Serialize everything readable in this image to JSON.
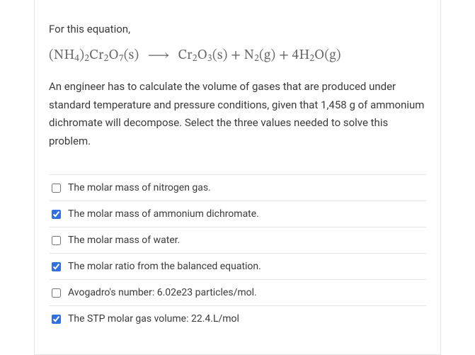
{
  "card": {
    "intro": "For this equation,",
    "equation_parts": {
      "lhs1": "(NH",
      "lhs1_sub": "4",
      "lhs2": ")",
      "lhs2_sub": "2",
      "lhs3": "Cr",
      "lhs3_sub": "2",
      "lhs4": "O",
      "lhs4_sub": "7",
      "lhs5": "(s)",
      "arrow": "⟶",
      "r1": "Cr",
      "r1_sub": "2",
      "r2": "O",
      "r2_sub": "3",
      "r3": "(s) + N",
      "r3_sub": "2",
      "r4": "(g) + 4H",
      "r4_sub": "2",
      "r5": "O(g)"
    },
    "prompt": "An engineer has to calculate the volume of gases that are produced under standard temperature and pressure conditions, given that 1,458 g of ammonium dichromate will decompose. Select the three values needed to solve this problem."
  },
  "options": [
    {
      "label": "The molar mass of nitrogen gas.",
      "checked": false
    },
    {
      "label": "The molar mass of ammonium dichromate.",
      "checked": true
    },
    {
      "label": "The molar mass of water.",
      "checked": false
    },
    {
      "label": "The molar ratio from the balanced equation.",
      "checked": true
    },
    {
      "label": "Avogadro's number: 6.02e23 particles/mol.",
      "checked": false
    },
    {
      "label": "The STP molar gas volume: 22.4.L/mol",
      "checked": true
    }
  ],
  "style": {
    "border_color": "#e5e5e5",
    "text_color": "#3a3a3a",
    "equation_color": "#666666",
    "checkbox_accent": "#316fe2",
    "body_fontsize": 15,
    "option_fontsize": 14,
    "equation_fontsize": 19
  }
}
